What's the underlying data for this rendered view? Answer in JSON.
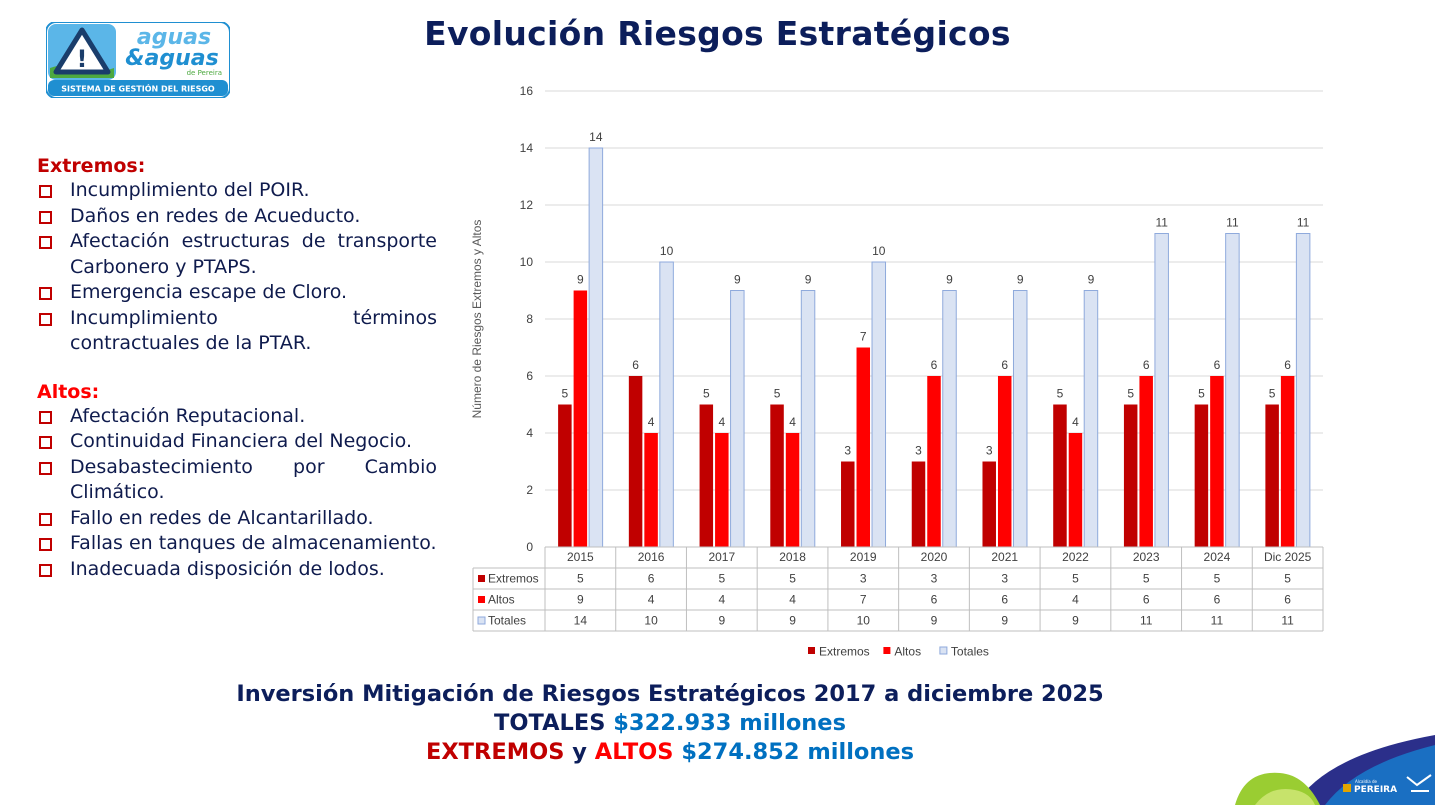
{
  "logo": {
    "brand_top": "aguas",
    "brand_amp": "&aguas",
    "brand_sub": "de Pereira",
    "system": "SISTEMA DE GESTIÓN DEL RIESGO",
    "mark": "!"
  },
  "title": "Evolución Riesgos Estratégicos",
  "extremos": {
    "heading": "Extremos:",
    "items": [
      "Incumplimiento del POIR.",
      "Daños en redes de Acueducto.",
      "Afectación estructuras de transporte Carbonero y PTAPS.",
      "Emergencia escape de Cloro.",
      "Incumplimiento términos contractuales de la PTAR."
    ]
  },
  "altos": {
    "heading": "Altos:",
    "items": [
      "Afectación Reputacional.",
      "Continuidad Financiera del Negocio.",
      "Desabastecimiento por Cambio Climático.",
      "Fallo en redes de Alcantarillado.",
      "Fallas en tanques de almacenamiento.",
      "Inadecuada disposición de lodos."
    ]
  },
  "chart_data": {
    "type": "bar",
    "categories": [
      "2015",
      "2016",
      "2017",
      "2018",
      "2019",
      "2020",
      "2021",
      "2022",
      "2023",
      "2024",
      "Dic 2025"
    ],
    "series": [
      {
        "name": "Extremos",
        "color": "#c00000",
        "values": [
          5,
          6,
          5,
          5,
          3,
          3,
          3,
          5,
          5,
          5,
          5
        ]
      },
      {
        "name": "Altos",
        "color": "#ff0000",
        "values": [
          9,
          4,
          4,
          4,
          7,
          6,
          6,
          4,
          6,
          6,
          6
        ]
      },
      {
        "name": "Totales",
        "color": "#dae3f3",
        "stroke": "#8faadc",
        "values": [
          14,
          10,
          9,
          9,
          10,
          9,
          9,
          9,
          11,
          11,
          11
        ]
      }
    ],
    "ylabel": "Número de Riesgos Extremos y Altos",
    "ylim": [
      0,
      16
    ],
    "yticks": [
      0,
      2,
      4,
      6,
      8,
      10,
      12,
      14,
      16
    ],
    "grid": true,
    "data_labels": true,
    "data_table": true,
    "legend": "bottom"
  },
  "footer": {
    "line1": "Inversión Mitigación de Riesgos Estratégicos 2017 a diciembre 2025",
    "totales_label": "TOTALES",
    "totales_value": "$322.933 millones",
    "extremos_label": "EXTREMOS",
    "y_word": "y",
    "altos_label": "ALTOS",
    "ea_value": "$274.852 millones"
  },
  "corner_brand": {
    "name": "PEREIRA",
    "small": "Alcaldía de"
  }
}
